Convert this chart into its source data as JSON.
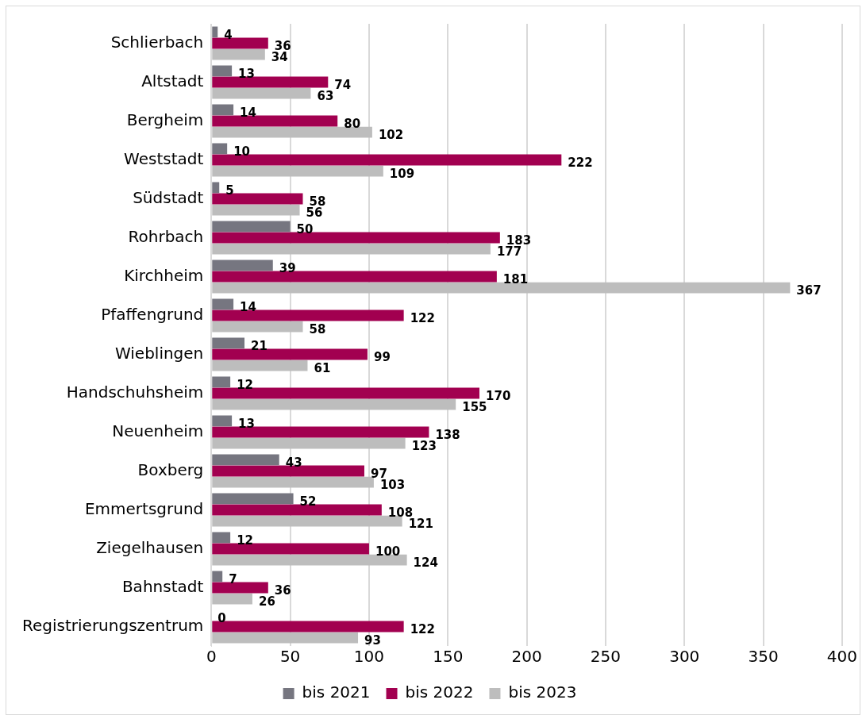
{
  "chart_data": {
    "type": "bar",
    "orientation": "horizontal",
    "categories": [
      "Schlierbach",
      "Altstadt",
      "Bergheim",
      "Weststadt",
      "Südstadt",
      "Rohrbach",
      "Kirchheim",
      "Pfaffengrund",
      "Wieblingen",
      "Handschuhsheim",
      "Neuenheim",
      "Boxberg",
      "Emmertsgrund",
      "Ziegelhausen",
      "Bahnstadt",
      "Registrierungszentrum"
    ],
    "series": [
      {
        "name": "bis 2021",
        "color": "#767680",
        "values": [
          4,
          13,
          14,
          10,
          5,
          50,
          39,
          14,
          21,
          12,
          13,
          43,
          52,
          12,
          7,
          0
        ]
      },
      {
        "name": "bis 2022",
        "color": "#a20050",
        "values": [
          36,
          74,
          80,
          222,
          58,
          183,
          181,
          122,
          99,
          170,
          138,
          97,
          108,
          100,
          36,
          122
        ]
      },
      {
        "name": "bis 2023",
        "color": "#bdbdbd",
        "values": [
          34,
          63,
          102,
          109,
          56,
          177,
          367,
          58,
          61,
          155,
          123,
          103,
          121,
          124,
          26,
          93
        ]
      }
    ],
    "xlim": [
      0,
      400
    ],
    "xticks": [
      0,
      50,
      100,
      150,
      200,
      250,
      300,
      350,
      400
    ],
    "grid": "x",
    "legend": "bottom",
    "data_labels": true
  }
}
